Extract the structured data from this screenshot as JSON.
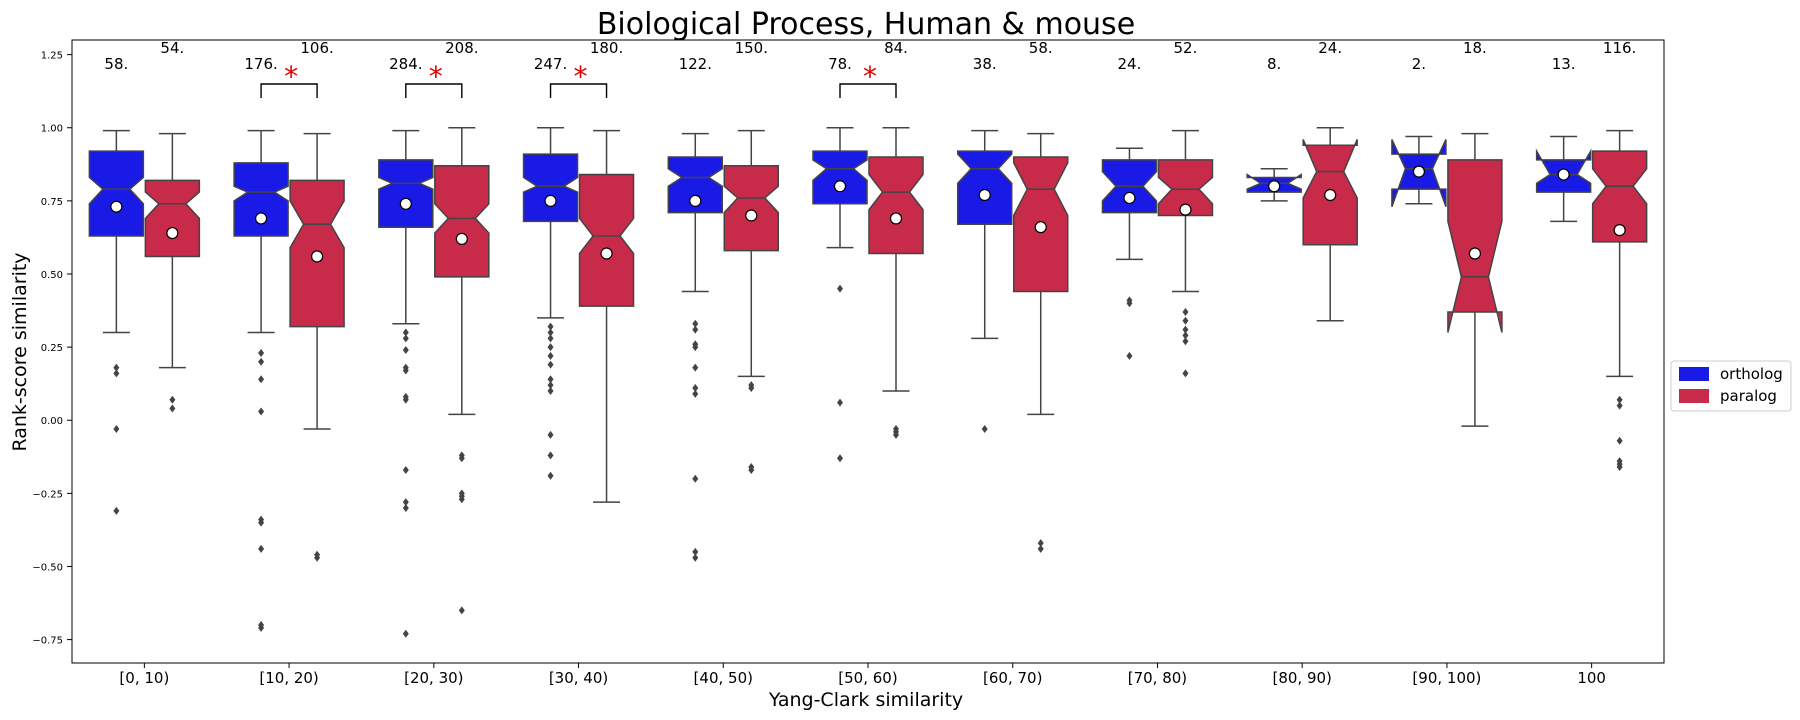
{
  "chart_data": {
    "type": "box",
    "title": "Biological Process, Human & mouse",
    "xlabel": "Yang-Clark similarity",
    "ylabel": "Rank-score similarity",
    "ylim": [
      -0.83,
      1.3
    ],
    "yticks": [
      -0.75,
      -0.5,
      -0.25,
      0.0,
      0.25,
      0.5,
      0.75,
      1.0,
      1.25
    ],
    "ytick_labels": [
      "−0.75",
      "−0.50",
      "−0.25",
      "0.00",
      "0.25",
      "0.50",
      "0.75",
      "1.00",
      "1.25"
    ],
    "categories": [
      "[0, 10)",
      "[10, 20)",
      "[20, 30)",
      "[30, 40)",
      "[40, 50)",
      "[50, 60)",
      "[60, 70)",
      "[70, 80)",
      "[80, 90)",
      "[90, 100)",
      "100"
    ],
    "legend_position": "right",
    "notched": true,
    "series": [
      {
        "name": "ortholog",
        "color": "#1a1ae6",
        "counts": [
          "58.",
          "176.",
          "284.",
          "247.",
          "122.",
          "78.",
          "38.",
          "24.",
          "8.",
          "2.",
          "13."
        ],
        "boxes": [
          {
            "wlo": 0.3,
            "q1": 0.63,
            "med": 0.79,
            "q3": 0.92,
            "whi": 0.99,
            "notch_lo": 0.74,
            "notch_hi": 0.83,
            "mean": 0.73,
            "outliers": [
              0.18,
              0.16,
              -0.03,
              -0.31
            ]
          },
          {
            "wlo": 0.3,
            "q1": 0.63,
            "med": 0.78,
            "q3": 0.88,
            "whi": 0.99,
            "notch_lo": 0.75,
            "notch_hi": 0.8,
            "mean": 0.69,
            "outliers": [
              0.23,
              0.2,
              0.14,
              0.03,
              -0.34,
              -0.35,
              -0.44,
              -0.7,
              -0.71
            ]
          },
          {
            "wlo": 0.33,
            "q1": 0.66,
            "med": 0.81,
            "q3": 0.89,
            "whi": 0.99,
            "notch_lo": 0.79,
            "notch_hi": 0.83,
            "mean": 0.74,
            "outliers": [
              0.3,
              0.28,
              0.24,
              0.18,
              0.17,
              0.08,
              0.07,
              -0.17,
              -0.28,
              -0.3,
              -0.73
            ]
          },
          {
            "wlo": 0.35,
            "q1": 0.68,
            "med": 0.8,
            "q3": 0.91,
            "whi": 1.0,
            "notch_lo": 0.78,
            "notch_hi": 0.83,
            "mean": 0.75,
            "outliers": [
              0.32,
              0.3,
              0.28,
              0.25,
              0.22,
              0.19,
              0.14,
              0.12,
              0.1,
              -0.05,
              -0.12,
              -0.19
            ]
          },
          {
            "wlo": 0.44,
            "q1": 0.71,
            "med": 0.83,
            "q3": 0.9,
            "whi": 0.98,
            "notch_lo": 0.8,
            "notch_hi": 0.86,
            "mean": 0.75,
            "outliers": [
              0.33,
              0.31,
              0.26,
              0.25,
              0.18,
              0.11,
              0.09,
              -0.2,
              -0.45,
              -0.47
            ]
          },
          {
            "wlo": 0.59,
            "q1": 0.74,
            "med": 0.86,
            "q3": 0.92,
            "whi": 1.0,
            "notch_lo": 0.82,
            "notch_hi": 0.89,
            "mean": 0.8,
            "outliers": [
              0.45,
              0.06,
              -0.13
            ]
          },
          {
            "wlo": 0.28,
            "q1": 0.67,
            "med": 0.86,
            "q3": 0.92,
            "whi": 0.99,
            "notch_lo": 0.81,
            "notch_hi": 0.91,
            "mean": 0.77,
            "outliers": [
              -0.03
            ]
          },
          {
            "wlo": 0.55,
            "q1": 0.71,
            "med": 0.8,
            "q3": 0.89,
            "whi": 0.93,
            "notch_lo": 0.75,
            "notch_hi": 0.85,
            "mean": 0.76,
            "outliers": [
              0.41,
              0.4,
              0.22
            ]
          },
          {
            "wlo": 0.75,
            "q1": 0.78,
            "med": 0.81,
            "q3": 0.83,
            "whi": 0.86,
            "notch_lo": 0.79,
            "notch_hi": 0.84,
            "mean": 0.8,
            "outliers": []
          },
          {
            "wlo": 0.74,
            "q1": 0.79,
            "med": 0.86,
            "q3": 0.91,
            "whi": 0.97,
            "notch_lo": 0.73,
            "notch_hi": 0.96,
            "mean": 0.85,
            "outliers": []
          },
          {
            "wlo": 0.68,
            "q1": 0.78,
            "med": 0.84,
            "q3": 0.89,
            "whi": 0.97,
            "notch_lo": 0.81,
            "notch_hi": 0.92,
            "mean": 0.84,
            "outliers": []
          }
        ]
      },
      {
        "name": "paralog",
        "color": "#c82a4a",
        "counts": [
          "54.",
          "106.",
          "208.",
          "180.",
          "150.",
          "84.",
          "58.",
          "52.",
          "24.",
          "18.",
          "116."
        ],
        "boxes": [
          {
            "wlo": 0.18,
            "q1": 0.56,
            "med": 0.74,
            "q3": 0.82,
            "whi": 0.98,
            "notch_lo": 0.69,
            "notch_hi": 0.78,
            "mean": 0.64,
            "outliers": [
              0.07,
              0.04
            ]
          },
          {
            "wlo": -0.03,
            "q1": 0.32,
            "med": 0.67,
            "q3": 0.82,
            "whi": 0.98,
            "notch_lo": 0.59,
            "notch_hi": 0.75,
            "mean": 0.56,
            "outliers": [
              -0.46,
              -0.47
            ]
          },
          {
            "wlo": 0.02,
            "q1": 0.49,
            "med": 0.69,
            "q3": 0.87,
            "whi": 1.0,
            "notch_lo": 0.64,
            "notch_hi": 0.74,
            "mean": 0.62,
            "outliers": [
              -0.12,
              -0.13,
              -0.25,
              -0.26,
              -0.27,
              -0.65
            ]
          },
          {
            "wlo": -0.28,
            "q1": 0.39,
            "med": 0.63,
            "q3": 0.84,
            "whi": 0.99,
            "notch_lo": 0.57,
            "notch_hi": 0.69,
            "mean": 0.57,
            "outliers": []
          },
          {
            "wlo": 0.15,
            "q1": 0.58,
            "med": 0.76,
            "q3": 0.87,
            "whi": 0.99,
            "notch_lo": 0.71,
            "notch_hi": 0.8,
            "mean": 0.7,
            "outliers": [
              0.12,
              0.11,
              -0.16,
              -0.17
            ]
          },
          {
            "wlo": 0.1,
            "q1": 0.57,
            "med": 0.78,
            "q3": 0.9,
            "whi": 1.0,
            "notch_lo": 0.72,
            "notch_hi": 0.84,
            "mean": 0.69,
            "outliers": [
              -0.03,
              -0.04,
              -0.05
            ]
          },
          {
            "wlo": 0.02,
            "q1": 0.44,
            "med": 0.79,
            "q3": 0.9,
            "whi": 0.98,
            "notch_lo": 0.7,
            "notch_hi": 0.88,
            "mean": 0.66,
            "outliers": [
              -0.42,
              -0.44
            ]
          },
          {
            "wlo": 0.44,
            "q1": 0.7,
            "med": 0.79,
            "q3": 0.89,
            "whi": 0.99,
            "notch_lo": 0.74,
            "notch_hi": 0.83,
            "mean": 0.72,
            "outliers": [
              0.37,
              0.34,
              0.31,
              0.29,
              0.27,
              0.16
            ]
          },
          {
            "wlo": 0.34,
            "q1": 0.6,
            "med": 0.85,
            "q3": 0.94,
            "whi": 1.0,
            "notch_lo": 0.76,
            "notch_hi": 0.96,
            "mean": 0.77,
            "outliers": []
          },
          {
            "wlo": -0.02,
            "q1": 0.37,
            "med": 0.49,
            "q3": 0.89,
            "whi": 0.98,
            "notch_lo": 0.3,
            "notch_hi": 0.68,
            "mean": 0.57,
            "outliers": []
          },
          {
            "wlo": 0.15,
            "q1": 0.61,
            "med": 0.8,
            "q3": 0.92,
            "whi": 0.99,
            "notch_lo": 0.74,
            "notch_hi": 0.86,
            "mean": 0.65,
            "outliers": [
              0.07,
              0.05,
              -0.07,
              -0.14,
              -0.15,
              -0.16
            ]
          }
        ]
      }
    ],
    "significance_marks": [
      {
        "category_index": 1,
        "symbol": "*"
      },
      {
        "category_index": 2,
        "symbol": "*"
      },
      {
        "category_index": 3,
        "symbol": "*"
      },
      {
        "category_index": 5,
        "symbol": "*"
      }
    ]
  }
}
